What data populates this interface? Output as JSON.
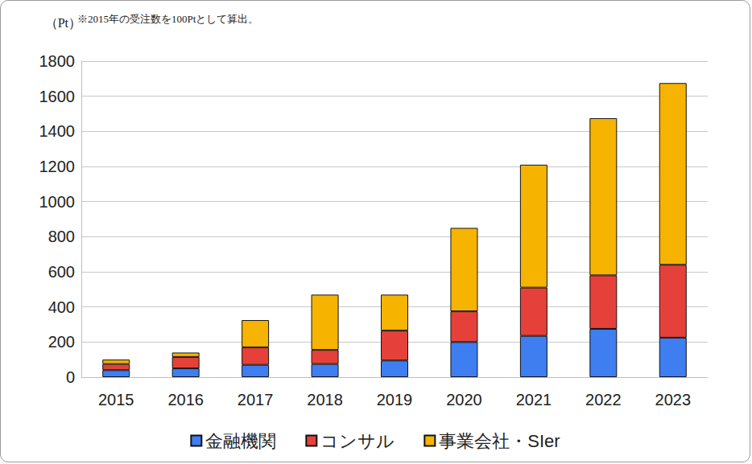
{
  "chart_data": {
    "type": "bar",
    "stacked": true,
    "ylabel": "（Pt）",
    "annotations": [
      "※2015年の受注数を100Ptとして算出。"
    ],
    "categories": [
      "2015",
      "2016",
      "2017",
      "2018",
      "2019",
      "2020",
      "2021",
      "2022",
      "2023"
    ],
    "series": [
      {
        "name": "金融機関",
        "color": "#3f7ef0",
        "values": [
          40,
          50,
          70,
          75,
          95,
          200,
          235,
          275,
          225
        ]
      },
      {
        "name": "コンサル",
        "color": "#e5413a",
        "values": [
          35,
          65,
          100,
          80,
          170,
          175,
          275,
          305,
          415
        ]
      },
      {
        "name": "事業会社・SIer",
        "color": "#f6b400",
        "values": [
          25,
          25,
          155,
          315,
          205,
          475,
          700,
          895,
          1035
        ]
      }
    ],
    "ylim": [
      0,
      1800
    ],
    "yticks": [
      0,
      200,
      400,
      600,
      800,
      1000,
      1200,
      1400,
      1600,
      1800
    ],
    "grid": true,
    "legend": "bottom"
  }
}
